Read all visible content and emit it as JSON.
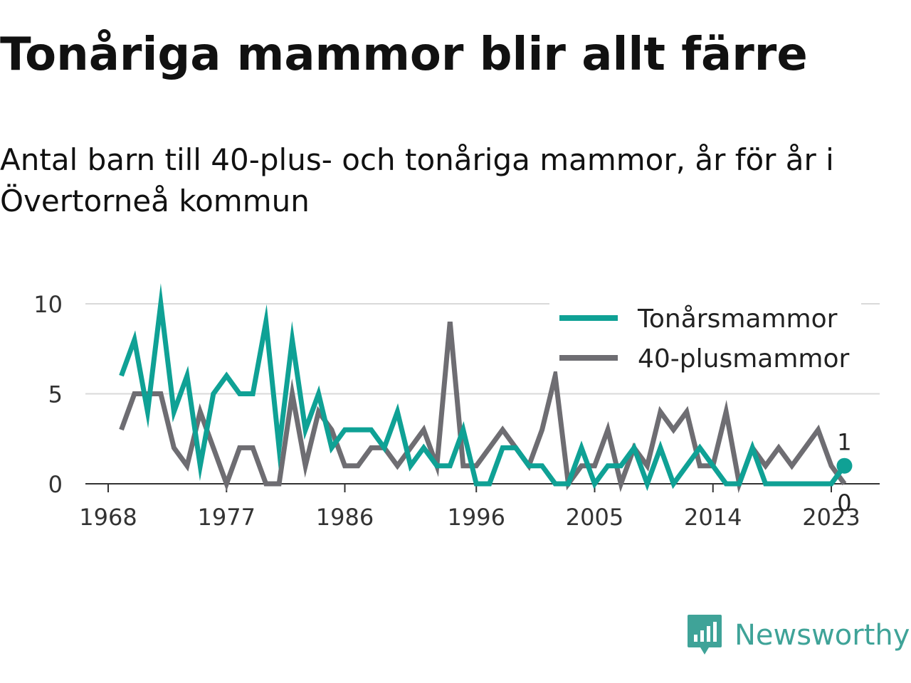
{
  "title": "Tonåriga mammor blir allt färre",
  "subtitle": "Antal barn till 40-plus- och tonåriga mammor, år för år i Övertorneå kommun",
  "brand": {
    "name": "Newsworthy",
    "color": "#3fa398"
  },
  "chart_data": {
    "type": "line",
    "x_start": 1969,
    "x_end": 2024,
    "xlim": [
      1968,
      2024.7
    ],
    "ylim": [
      0,
      10
    ],
    "y_ticks": [
      0,
      5,
      10
    ],
    "x_ticks": [
      1968,
      1977,
      1986,
      1996,
      2005,
      2014,
      2023
    ],
    "grid": "horizontal",
    "legend": "top-right",
    "series": [
      {
        "name": "Tonårsmammor",
        "color": "#0fa195",
        "values": [
          6,
          8,
          4,
          10,
          4,
          6,
          1,
          5,
          6,
          5,
          5,
          9,
          2,
          8,
          3,
          5,
          2,
          3,
          3,
          3,
          2,
          4,
          1,
          2,
          1,
          1,
          3,
          0,
          0,
          2,
          2,
          1,
          1,
          0,
          0,
          2,
          0,
          1,
          1,
          2,
          0,
          2,
          0,
          1,
          2,
          1,
          0,
          0,
          2,
          0,
          0,
          0,
          0,
          0,
          0,
          1
        ],
        "end_label": "1"
      },
      {
        "name": "40-plusmammor",
        "color": "#6e6d72",
        "values": [
          3,
          5,
          5,
          5,
          2,
          1,
          4,
          2,
          0,
          2,
          2,
          0,
          0,
          5,
          1,
          4,
          3,
          1,
          1,
          2,
          2,
          1,
          2,
          3,
          1,
          9,
          1,
          1,
          2,
          3,
          2,
          1,
          3,
          6,
          0,
          1,
          1,
          3,
          0,
          2,
          1,
          4,
          3,
          4,
          1,
          1,
          4,
          0,
          2,
          1,
          2,
          1,
          2,
          3,
          1,
          0
        ],
        "end_label": "0"
      }
    ]
  }
}
